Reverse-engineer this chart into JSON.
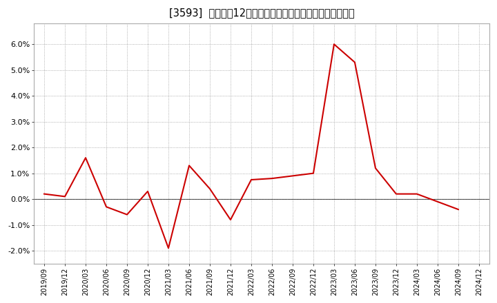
{
  "title": "[3593]  売上高の12か月移動合計の対前年同期増減率の推移",
  "line_color": "#cc0000",
  "background_color": "#ffffff",
  "plot_background_color": "#ffffff",
  "grid_color": "#999999",
  "zero_line_color": "#333333",
  "ylim": [
    -0.025,
    0.068
  ],
  "yticks": [
    -0.02,
    -0.01,
    0.0,
    0.01,
    0.02,
    0.03,
    0.04,
    0.05,
    0.06
  ],
  "dates": [
    "2019/09",
    "2019/12",
    "2020/03",
    "2020/06",
    "2020/09",
    "2020/12",
    "2021/03",
    "2021/06",
    "2021/09",
    "2021/12",
    "2022/03",
    "2022/06",
    "2022/09",
    "2022/12",
    "2023/03",
    "2023/06",
    "2023/09",
    "2023/12",
    "2024/03",
    "2024/06",
    "2024/09",
    "2024/12"
  ],
  "values": [
    0.002,
    0.001,
    0.016,
    -0.003,
    -0.006,
    0.003,
    -0.019,
    0.013,
    0.004,
    -0.008,
    0.0075,
    0.008,
    0.009,
    0.01,
    0.06,
    0.053,
    0.012,
    0.002,
    0.002,
    -0.001,
    -0.004,
    null
  ],
  "title_fontsize": 10.5,
  "tick_fontsize": 8,
  "line_width": 1.5,
  "spine_color": "#aaaaaa"
}
